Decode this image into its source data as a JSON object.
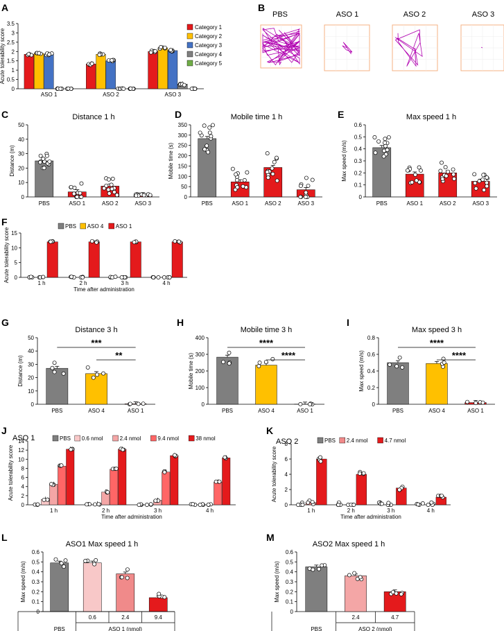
{
  "colors": {
    "PBS": "#7f7f7f",
    "ASO1": "#e41a1c",
    "ASO4": "#ffc000",
    "ASO2_red": "#e41a1c",
    "c1": "#e41a1c",
    "c2": "#ffc000",
    "c3": "#4472c4",
    "c4": "#7f7f7f",
    "c5": "#70ad47",
    "trace": "#b000b0",
    "pink1": "#f8c8c8",
    "pink2": "#f08a8a",
    "light": "#f4a6a6"
  },
  "letters": {
    "A": "A",
    "B": "B",
    "C": "C",
    "D": "D",
    "E": "E",
    "F": "F",
    "G": "G",
    "H": "H",
    "I": "I",
    "J": "J",
    "K": "K",
    "L": "L",
    "M": "M"
  },
  "panelB": {
    "labels": [
      "PBS",
      "ASO 1",
      "ASO 2",
      "ASO 3"
    ]
  },
  "chart_data": [
    {
      "id": "A",
      "type": "bar",
      "ylabel": "Acute tolerability score",
      "ylim": [
        0,
        3.5
      ],
      "yticks": [
        "0",
        "0.5",
        "1",
        "1.5",
        "2",
        "2.5",
        "3",
        "3.5"
      ],
      "categories": [
        "ASO 1",
        "ASO 2",
        "ASO 3"
      ],
      "legend": [
        "Category 1",
        "Category 2",
        "Category 3",
        "Category 4",
        "Category 5"
      ],
      "series": [
        {
          "name": "Category 1",
          "values": [
            1.85,
            1.33,
            2.0
          ]
        },
        {
          "name": "Category 2",
          "values": [
            1.9,
            1.85,
            2.2
          ]
        },
        {
          "name": "Category 3",
          "values": [
            1.85,
            1.5,
            2.05
          ]
        },
        {
          "name": "Category 4",
          "values": [
            0,
            0,
            0.25
          ]
        },
        {
          "name": "Category 5",
          "values": [
            0,
            0,
            0
          ]
        }
      ]
    },
    {
      "id": "C",
      "type": "bar",
      "title": "Distance 1 h",
      "ylabel": "Distance (m)",
      "ylim": [
        0,
        50
      ],
      "yticks": [
        "0",
        "10",
        "20",
        "30",
        "40",
        "50"
      ],
      "categories": [
        "PBS",
        "ASO 1",
        "ASO 2",
        "ASO 3"
      ],
      "values": [
        25,
        3.5,
        7.5,
        1.5
      ]
    },
    {
      "id": "D",
      "type": "bar",
      "title": "Mobile time 1 h",
      "ylabel": "Mobile time (s)",
      "ylim": [
        0,
        350
      ],
      "yticks": [
        "0",
        "50",
        "100",
        "150",
        "200",
        "250",
        "300",
        "350"
      ],
      "categories": [
        "PBS",
        "ASO 1",
        "ASO 2",
        "ASO 3"
      ],
      "values": [
        283,
        73,
        143,
        35
      ]
    },
    {
      "id": "E",
      "type": "bar",
      "title": "Max speed 1 h",
      "ylabel": "Max speed (m/s)",
      "ylim": [
        0,
        0.6
      ],
      "yticks": [
        "0",
        "0.1",
        "0.2",
        "0.3",
        "0.4",
        "0.5",
        "0.6"
      ],
      "categories": [
        "PBS",
        "ASO 1",
        "ASO 2",
        "ASO 3"
      ],
      "values": [
        0.41,
        0.19,
        0.2,
        0.13
      ]
    },
    {
      "id": "F",
      "type": "bar",
      "ylabel": "Acute tolerability score",
      "xlabel": "Time after administration",
      "ylim": [
        0,
        15
      ],
      "yticks": [
        "0",
        "5",
        "10",
        "15"
      ],
      "categories": [
        "1 h",
        "2 h",
        "3 h",
        "4 h"
      ],
      "legend": [
        "PBS",
        "ASO 4",
        "ASO 1"
      ],
      "series": [
        {
          "name": "PBS",
          "values": [
            0,
            0,
            0,
            0
          ]
        },
        {
          "name": "ASO 4",
          "values": [
            0,
            0,
            0,
            0
          ]
        },
        {
          "name": "ASO 1",
          "values": [
            12,
            12,
            12,
            12
          ]
        }
      ]
    },
    {
      "id": "G",
      "type": "bar",
      "title": "Distance 3 h",
      "ylabel": "Distance (m)",
      "ylim": [
        0,
        50
      ],
      "yticks": [
        "0",
        "10",
        "20",
        "30",
        "40",
        "50"
      ],
      "categories": [
        "PBS",
        "ASO 4",
        "ASO 1"
      ],
      "values": [
        27,
        23,
        0.3
      ],
      "sig": [
        "***",
        "**"
      ]
    },
    {
      "id": "H",
      "type": "bar",
      "title": "Mobile time 3 h",
      "ylabel": "Mobile time (s)",
      "ylim": [
        0,
        400
      ],
      "yticks": [
        "0",
        "100",
        "200",
        "300",
        "400"
      ],
      "categories": [
        "PBS",
        "ASO 4",
        "ASO 1"
      ],
      "values": [
        283,
        235,
        1
      ],
      "sig": [
        "****",
        "****"
      ]
    },
    {
      "id": "I",
      "type": "bar",
      "title": "Max speed 3 h",
      "ylabel": "Max speed (m/s)",
      "ylim": [
        0,
        0.8
      ],
      "yticks": [
        "0",
        "0.2",
        "0.4",
        "0.6",
        "0.8"
      ],
      "categories": [
        "PBS",
        "ASO 4",
        "ASO 1"
      ],
      "values": [
        0.5,
        0.49,
        0.02
      ],
      "sig": [
        "****",
        "****"
      ]
    },
    {
      "id": "J",
      "type": "bar",
      "title": "ASO 1",
      "ylabel": "Acute tolerability score",
      "xlabel": "Time after administration",
      "ylim": [
        0,
        14
      ],
      "yticks": [
        "0",
        "2",
        "4",
        "6",
        "8",
        "10",
        "12",
        "14"
      ],
      "categories": [
        "1 h",
        "2 h",
        "3 h",
        "4 h"
      ],
      "legend": [
        "PBS",
        "0.6 nmol",
        "2.4 nmol",
        "9.4 nmol",
        "38 nmol"
      ],
      "series": [
        {
          "name": "PBS",
          "values": [
            0,
            0,
            0,
            0
          ]
        },
        {
          "name": "0.6 nmol",
          "values": [
            1.2,
            0.2,
            0,
            0
          ]
        },
        {
          "name": "2.4 nmol",
          "values": [
            4.5,
            2.8,
            1.0,
            0
          ]
        },
        {
          "name": "9.4 nmol",
          "values": [
            8.5,
            7.8,
            7.2,
            5.0
          ]
        },
        {
          "name": "38 nmol",
          "values": [
            12.2,
            12.2,
            10.8,
            10.3
          ]
        }
      ]
    },
    {
      "id": "K",
      "type": "bar",
      "title": "ASO 2",
      "ylabel": "Acute tolerability score",
      "xlabel": "Time after administration",
      "ylim": [
        0,
        8
      ],
      "yticks": [
        "0",
        "2",
        "4",
        "6",
        "8"
      ],
      "categories": [
        "1 h",
        "2 h",
        "3 h",
        "4 h"
      ],
      "legend": [
        "PBS",
        "2.4 nmol",
        "4.7 nmol"
      ],
      "series": [
        {
          "name": "PBS",
          "values": [
            0,
            0,
            0,
            0
          ]
        },
        {
          "name": "2.4 nmol",
          "values": [
            0.3,
            0,
            0,
            0
          ]
        },
        {
          "name": "4.7 nmol",
          "values": [
            6.0,
            4.0,
            2.2,
            1.0
          ]
        }
      ]
    },
    {
      "id": "L",
      "type": "bar",
      "title": "ASO1 Max speed 1 h",
      "ylabel": "Max speed (m/s)",
      "ylim": [
        0,
        0.6
      ],
      "yticks": [
        "0",
        "0.1",
        "0.2",
        "0.3",
        "0.4",
        "0.5",
        "0.6"
      ],
      "categories": [
        "PBS",
        "0.6",
        "2.4",
        "9.4"
      ],
      "group_label": "ASO 1 (nmol)",
      "values": [
        0.49,
        0.49,
        0.38,
        0.14
      ]
    },
    {
      "id": "M",
      "type": "bar",
      "title": "ASO2 Max speed 1 h",
      "ylabel": "Max speed (m/s)",
      "ylim": [
        0,
        0.6
      ],
      "yticks": [
        "0",
        "0.1",
        "0.2",
        "0.3",
        "0.4",
        "0.5",
        "0.6"
      ],
      "categories": [
        "PBS",
        "2.4",
        "4.7"
      ],
      "group_label": "ASO 2 (nmol)",
      "values": [
        0.45,
        0.36,
        0.2
      ]
    }
  ]
}
